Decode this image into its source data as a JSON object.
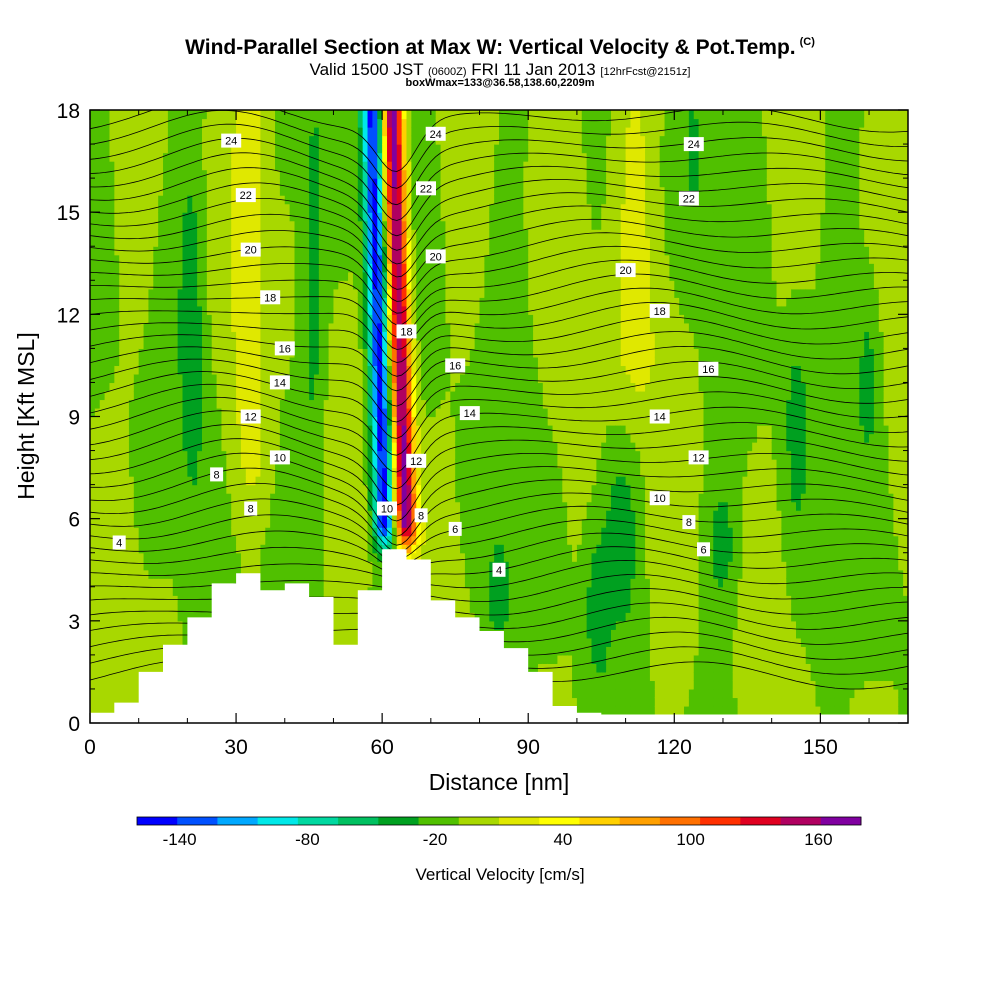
{
  "header": {
    "title": "Wind-Parallel Section at Max W: Vertical Velocity & Pot.Temp.",
    "copyright": "(C)",
    "valid_prefix": "Valid 1500 JST",
    "valid_utc": "(0600Z)",
    "valid_date": "FRI 11 Jan 2013",
    "forecast": "[12hrFcst@2151z]",
    "box_info": "boxWmax=133@36.58,138.60,2209m"
  },
  "chart_data": {
    "type": "heatmap",
    "xlabel": "Distance [nm]",
    "ylabel": "Height [Kft MSL]",
    "xlim": [
      0,
      168
    ],
    "ylim": [
      0,
      18
    ],
    "x_ticks": [
      0,
      30,
      60,
      90,
      120,
      150
    ],
    "y_ticks": [
      0,
      3,
      6,
      9,
      12,
      15,
      18
    ],
    "colorbar": {
      "label": "Vertical Velocity [cm/s]",
      "min": -160,
      "max": 180,
      "step": 20,
      "tick_labels": [
        -140,
        -80,
        -20,
        40,
        100,
        160
      ],
      "colors": [
        "#0000ff",
        "#0050ff",
        "#00a8ff",
        "#00e8e8",
        "#00d8a0",
        "#00c060",
        "#00a020",
        "#50c000",
        "#a8d800",
        "#e0e800",
        "#ffff00",
        "#ffd000",
        "#ffa000",
        "#ff7000",
        "#ff3000",
        "#e00020",
        "#b00060",
        "#8000a0"
      ]
    },
    "terrain": [
      [
        0,
        0.3
      ],
      [
        5,
        0.6
      ],
      [
        10,
        1.5
      ],
      [
        15,
        2.3
      ],
      [
        20,
        3.1
      ],
      [
        25,
        4.1
      ],
      [
        30,
        4.4
      ],
      [
        35,
        3.9
      ],
      [
        40,
        4.1
      ],
      [
        45,
        3.7
      ],
      [
        50,
        2.3
      ],
      [
        55,
        3.9
      ],
      [
        60,
        5.1
      ],
      [
        65,
        4.8
      ],
      [
        70,
        3.6
      ],
      [
        75,
        3.1
      ],
      [
        80,
        2.7
      ],
      [
        85,
        2.2
      ],
      [
        90,
        1.5
      ],
      [
        95,
        0.5
      ],
      [
        100,
        0.3
      ],
      [
        105,
        0
      ]
    ],
    "contour_labels": [
      {
        "text": "4",
        "x": 6,
        "y": 5.3
      },
      {
        "text": "4",
        "x": 84,
        "y": 4.5
      },
      {
        "text": "6",
        "x": 75,
        "y": 5.7
      },
      {
        "text": "6",
        "x": 126,
        "y": 5.1
      },
      {
        "text": "8",
        "x": 26,
        "y": 7.3
      },
      {
        "text": "8",
        "x": 33,
        "y": 6.3
      },
      {
        "text": "8",
        "x": 68,
        "y": 6.1
      },
      {
        "text": "8",
        "x": 123,
        "y": 5.9
      },
      {
        "text": "10",
        "x": 39,
        "y": 7.8
      },
      {
        "text": "10",
        "x": 61,
        "y": 6.3
      },
      {
        "text": "10",
        "x": 117,
        "y": 6.6
      },
      {
        "text": "12",
        "x": 33,
        "y": 9.0
      },
      {
        "text": "12",
        "x": 67,
        "y": 7.7
      },
      {
        "text": "12",
        "x": 125,
        "y": 7.8
      },
      {
        "text": "14",
        "x": 39,
        "y": 10.0
      },
      {
        "text": "14",
        "x": 78,
        "y": 9.1
      },
      {
        "text": "14",
        "x": 117,
        "y": 9.0
      },
      {
        "text": "16",
        "x": 40,
        "y": 11.0
      },
      {
        "text": "16",
        "x": 75,
        "y": 10.5
      },
      {
        "text": "16",
        "x": 127,
        "y": 10.4
      },
      {
        "text": "18",
        "x": 37,
        "y": 12.5
      },
      {
        "text": "18",
        "x": 65,
        "y": 11.5
      },
      {
        "text": "18",
        "x": 117,
        "y": 12.1
      },
      {
        "text": "20",
        "x": 33,
        "y": 13.9
      },
      {
        "text": "20",
        "x": 71,
        "y": 13.7
      },
      {
        "text": "20",
        "x": 110,
        "y": 13.3
      },
      {
        "text": "22",
        "x": 32,
        "y": 15.5
      },
      {
        "text": "22",
        "x": 69,
        "y": 15.7
      },
      {
        "text": "22",
        "x": 123,
        "y": 15.4
      },
      {
        "text": "24",
        "x": 29,
        "y": 17.1
      },
      {
        "text": "24",
        "x": 71,
        "y": 17.3
      },
      {
        "text": "24",
        "x": 124,
        "y": 17.0
      }
    ]
  }
}
